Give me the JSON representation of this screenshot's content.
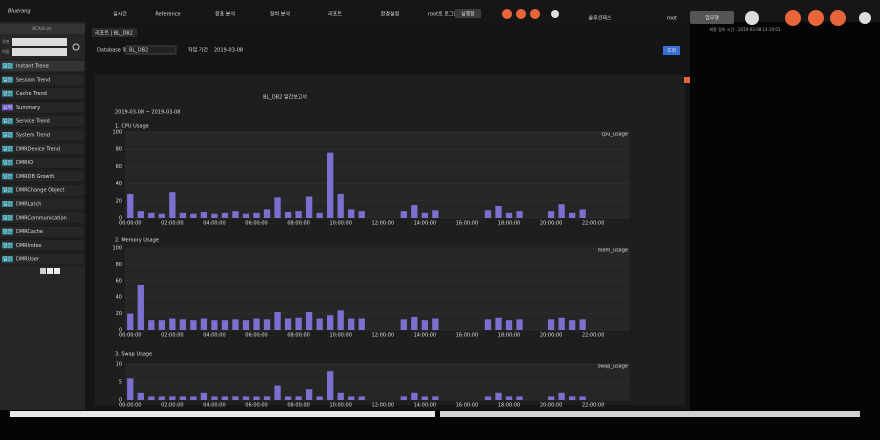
{
  "header": {
    "logo": "Bluerang",
    "menu": [
      "실시간",
      "Reference",
      "장표 분석",
      "장비 분석",
      "리포트",
      "환경설정"
    ],
    "login": "root로 로그인",
    "run": "실행창",
    "solution": "솔루션제스",
    "user": "root",
    "workmode": "업무행",
    "last_login": "최종 접속 시간 : 2019-03-08 14:10:01"
  },
  "sidebar": {
    "title": "BCA모니터",
    "filter_label": "유형",
    "filter_value": "전체",
    "name_label": "이름",
    "items": [
      {
        "tag": "일간",
        "name": "Instant Trend"
      },
      {
        "tag": "일간",
        "name": "Session Trend"
      },
      {
        "tag": "일간",
        "name": "Cache Trend"
      },
      {
        "tag": "요약",
        "name": "Summary"
      },
      {
        "tag": "일간",
        "name": "Service Trend"
      },
      {
        "tag": "일간",
        "name": "System Trend"
      },
      {
        "tag": "일간",
        "name": "DMRDevice Trend"
      },
      {
        "tag": "일간",
        "name": "DMRIO"
      },
      {
        "tag": "일간",
        "name": "DMRDB Growth"
      },
      {
        "tag": "일간",
        "name": "DMRChange Object"
      },
      {
        "tag": "일간",
        "name": "DMRLatch"
      },
      {
        "tag": "일간",
        "name": "DMRCommunication"
      },
      {
        "tag": "일간",
        "name": "DMRCache"
      },
      {
        "tag": "일간",
        "name": "DMRIndex"
      },
      {
        "tag": "일간",
        "name": "DMRUser"
      }
    ],
    "pages": [
      "1",
      "2",
      "3"
    ]
  },
  "tab": "리포트 | BL_DB2",
  "toolbar": {
    "db_label": "Database 명",
    "db_value": "BL_DB2",
    "date_label": "작업 기간",
    "date_value": "2019-03-08",
    "button": "조회"
  },
  "report": {
    "title": "BL_DB2 일간보고서",
    "period": "2019-03-08 ~ 2019-03-08"
  },
  "chart_data": [
    {
      "type": "bar",
      "title": "1. CPU Usage",
      "ylim": [
        0,
        100
      ],
      "yticks": [
        0,
        20,
        40,
        60,
        80,
        100
      ],
      "grid": true,
      "categories": [
        "00:00:00",
        null,
        null,
        null,
        "02:00:00",
        null,
        null,
        null,
        "04:00:00",
        null,
        null,
        null,
        "06:00:00",
        null,
        null,
        null,
        "08:00:00",
        null,
        null,
        null,
        "10:00:00",
        null,
        null,
        null,
        "12:00:00",
        null,
        null,
        null,
        "14:00:00",
        null,
        null,
        null,
        "16:00:00",
        null,
        null,
        null,
        "18:00:00",
        null,
        null,
        null,
        "20:00:00",
        null,
        null,
        null,
        "22:00:00",
        null,
        null,
        null
      ],
      "series": [
        {
          "name": "cpu_usage",
          "color": "#7b6fd0",
          "values": [
            28,
            8,
            6,
            5,
            30,
            6,
            5,
            7,
            5,
            6,
            8,
            5,
            6,
            10,
            24,
            7,
            8,
            25,
            6,
            76,
            28,
            10,
            8,
            null,
            null,
            null,
            8,
            15,
            6,
            9,
            null,
            null,
            null,
            null,
            9,
            14,
            6,
            8,
            null,
            null,
            8,
            16,
            6,
            10,
            null,
            null,
            null,
            null
          ]
        }
      ]
    },
    {
      "type": "bar",
      "title": "2. Memory Usage",
      "ylim": [
        0,
        100
      ],
      "yticks": [
        0,
        20,
        40,
        60,
        80,
        100
      ],
      "grid": true,
      "categories": [
        "00:00:00",
        null,
        null,
        null,
        "02:00:00",
        null,
        null,
        null,
        "04:00:00",
        null,
        null,
        null,
        "06:00:00",
        null,
        null,
        null,
        "08:00:00",
        null,
        null,
        null,
        "10:00:00",
        null,
        null,
        null,
        "12:00:00",
        null,
        null,
        null,
        "14:00:00",
        null,
        null,
        null,
        "16:00:00",
        null,
        null,
        null,
        "18:00:00",
        null,
        null,
        null,
        "20:00:00",
        null,
        null,
        null,
        "22:00:00",
        null,
        null,
        null
      ],
      "series": [
        {
          "name": "mem_usage",
          "color": "#7b6fd0",
          "values": [
            20,
            55,
            12,
            12,
            14,
            13,
            12,
            14,
            12,
            12,
            13,
            12,
            14,
            13,
            22,
            14,
            15,
            22,
            14,
            18,
            24,
            14,
            14,
            null,
            null,
            null,
            13,
            16,
            12,
            14,
            null,
            null,
            null,
            null,
            13,
            15,
            12,
            13,
            null,
            null,
            13,
            15,
            12,
            13,
            null,
            null,
            null,
            null
          ]
        }
      ]
    },
    {
      "type": "bar",
      "title": "3. Swap Usage",
      "ylim": [
        0,
        10
      ],
      "yticks": [
        0,
        5,
        10
      ],
      "grid": true,
      "categories": [
        "00:00:00",
        null,
        null,
        null,
        "02:00:00",
        null,
        null,
        null,
        "04:00:00",
        null,
        null,
        null,
        "06:00:00",
        null,
        null,
        null,
        "08:00:00",
        null,
        null,
        null,
        "10:00:00",
        null,
        null,
        null,
        "12:00:00",
        null,
        null,
        null,
        "14:00:00",
        null,
        null,
        null,
        "16:00:00",
        null,
        null,
        null,
        "18:00:00",
        null,
        null,
        null,
        "20:00:00",
        null,
        null,
        null,
        "22:00:00",
        null,
        null,
        null
      ],
      "series": [
        {
          "name": "swap_usage",
          "color": "#7b6fd0",
          "values": [
            6,
            2,
            1,
            1,
            1,
            1,
            1,
            2,
            1,
            1,
            1,
            1,
            1,
            1,
            4,
            1,
            1,
            3,
            1,
            8,
            2,
            1,
            1,
            null,
            null,
            null,
            1,
            2,
            1,
            1,
            null,
            null,
            null,
            null,
            1,
            2,
            1,
            1,
            null,
            null,
            1,
            2,
            1,
            1,
            null,
            null,
            null,
            null
          ]
        }
      ]
    }
  ]
}
